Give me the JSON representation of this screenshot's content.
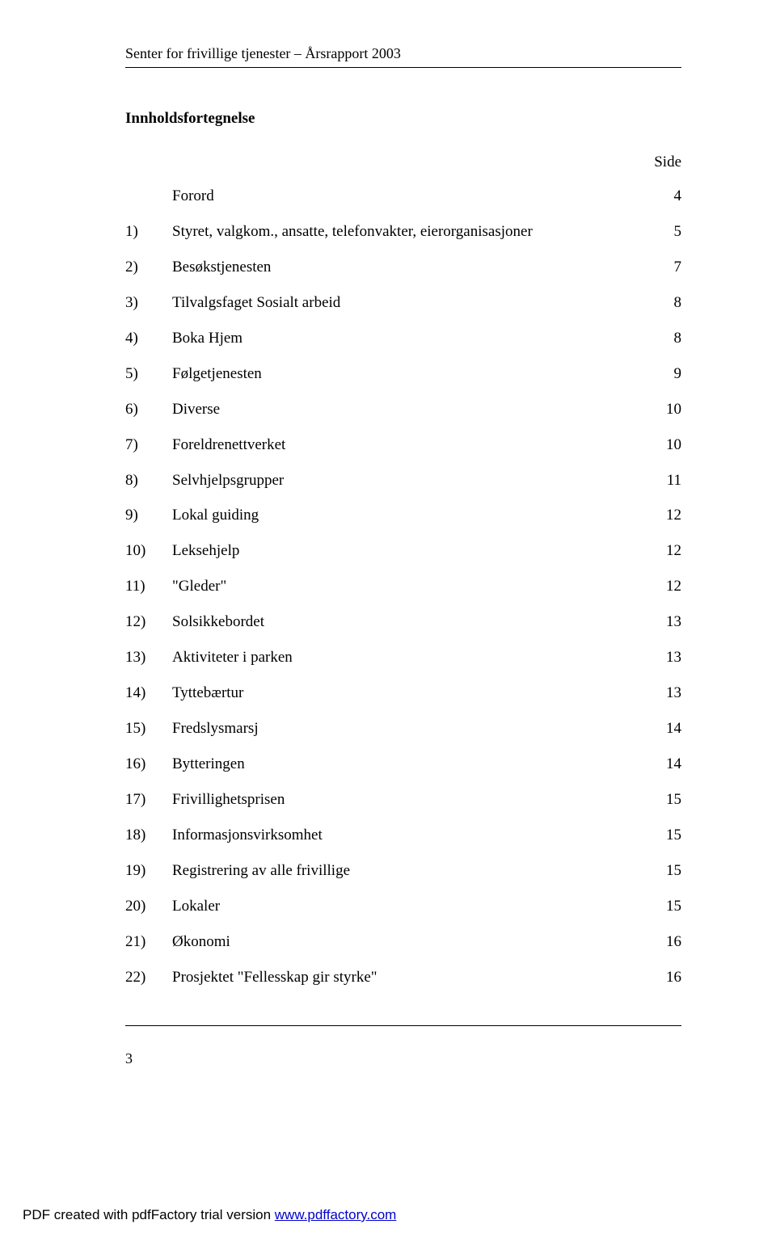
{
  "header": "Senter for frivillige tjenester – Årsrapport 2003",
  "title": "Innholdsfortegnelse",
  "sideLabel": "Side",
  "forord": {
    "label": "Forord",
    "page": "4"
  },
  "items": [
    {
      "num": "1)",
      "text": "Styret, valgkom., ansatte, telefonvakter, eierorganisasjoner",
      "page": "5"
    },
    {
      "num": "2)",
      "text": "Besøkstjenesten",
      "page": "7"
    },
    {
      "num": "3)",
      "text": "Tilvalgsfaget Sosialt arbeid",
      "page": "8"
    },
    {
      "num": "4)",
      "text": "Boka Hjem",
      "page": "8"
    },
    {
      "num": "5)",
      "text": "Følgetjenesten",
      "page": "9"
    },
    {
      "num": "6)",
      "text": "Diverse",
      "page": "10"
    },
    {
      "num": "7)",
      "text": "Foreldrenettverket",
      "page": "10"
    },
    {
      "num": "8)",
      "text": "Selvhjelpsgrupper",
      "page": "11"
    },
    {
      "num": "9)",
      "text": "Lokal guiding",
      "page": "12"
    },
    {
      "num": "10)",
      "text": "Leksehjelp",
      "page": "12"
    },
    {
      "num": "11)",
      "text": "\"Gleder\"",
      "page": "12"
    },
    {
      "num": "12)",
      "text": "Solsikkebordet",
      "page": "13"
    },
    {
      "num": "13)",
      "text": "Aktiviteter i parken",
      "page": "13"
    },
    {
      "num": "14)",
      "text": "Tyttebærtur",
      "page": "13"
    },
    {
      "num": "15)",
      "text": "Fredslysmarsj",
      "page": "14"
    },
    {
      "num": "16)",
      "text": "Bytteringen",
      "page": "14"
    },
    {
      "num": "17)",
      "text": "Frivillighetsprisen",
      "page": "15"
    },
    {
      "num": "18)",
      "text": "Informasjonsvirksomhet",
      "page": "15"
    },
    {
      "num": "19)",
      "text": "Registrering av alle frivillige",
      "page": "15"
    },
    {
      "num": "20)",
      "text": "Lokaler",
      "page": "15"
    },
    {
      "num": "21)",
      "text": "Økonomi",
      "page": "16"
    },
    {
      "num": "22)",
      "text": "Prosjektet \"Fellesskap gir styrke\"",
      "page": "16"
    }
  ],
  "pageNumber": "3",
  "footer": {
    "prefix": "PDF created with pdfFactory trial version ",
    "link": "www.pdffactory.com"
  }
}
